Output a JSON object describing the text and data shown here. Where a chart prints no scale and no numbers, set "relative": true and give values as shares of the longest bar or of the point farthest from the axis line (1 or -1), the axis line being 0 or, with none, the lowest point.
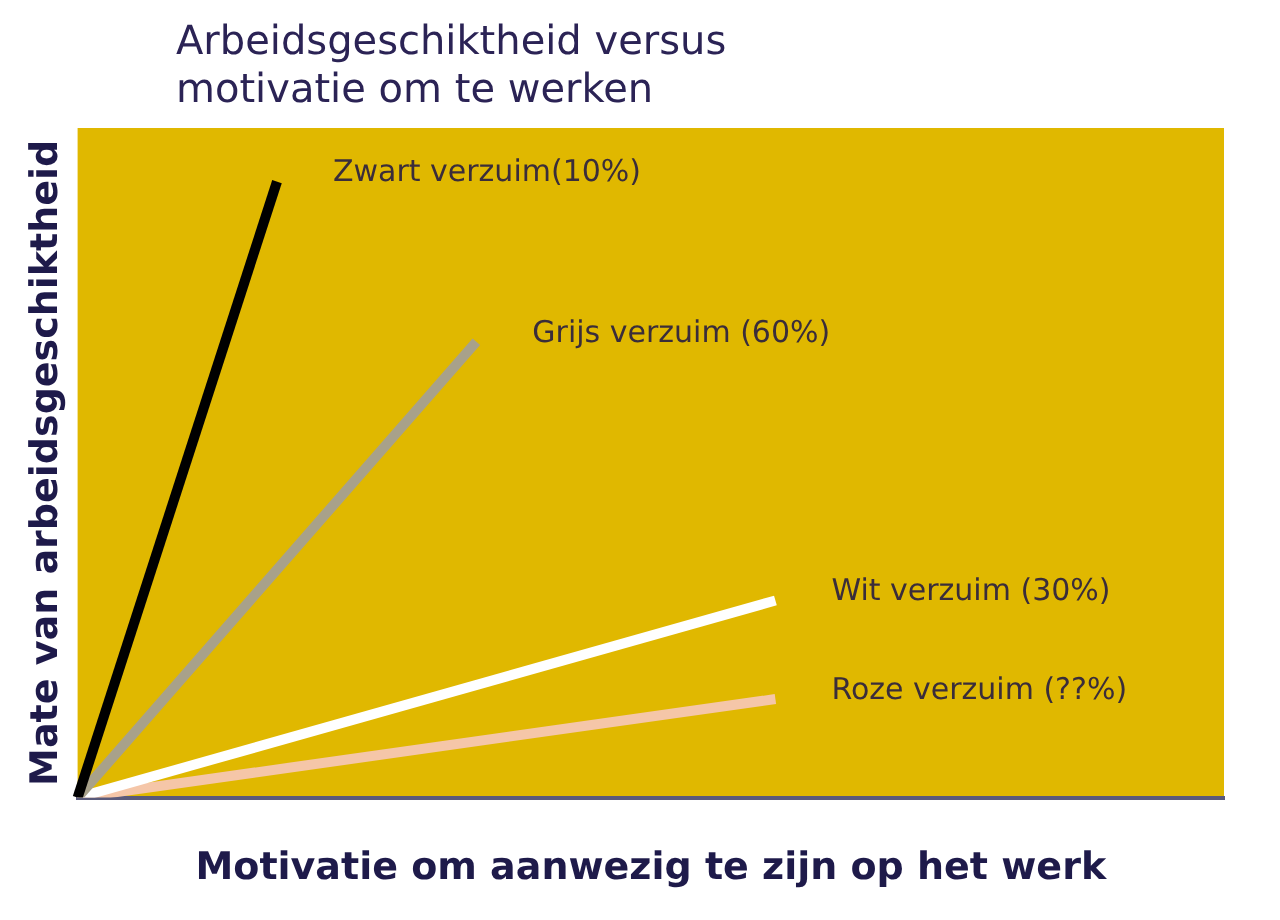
{
  "chart_data": {
    "type": "line",
    "title": "Arbeidsgeschiktheid versus motivatie om te werken",
    "xlabel": "Motivatie om aanwezig te zijn op het werk",
    "ylabel": "Mate van arbeidsgeschiktheid",
    "relative": true,
    "legend": false,
    "marker": "none",
    "line_style": "solid",
    "categories": [
      null,
      null,
      null,
      null,
      null,
      null,
      null,
      null,
      null,
      null,
      null,
      null,
      null,
      null,
      null,
      null,
      null,
      null,
      null,
      null,
      null,
      null,
      null,
      null
    ],
    "series": [
      {
        "name": "Zwart verzuim(10%)",
        "color": "#000000",
        "values": [
          0,
          null,
          null,
          null,
          1,
          null,
          null,
          null,
          null,
          null,
          null,
          null,
          null,
          null,
          null,
          null,
          null,
          null,
          null,
          null,
          null,
          null,
          null,
          null
        ]
      },
      {
        "name": "Grijs verzuim (60%)",
        "color": "#a8a18a",
        "values": [
          0,
          null,
          null,
          null,
          null,
          null,
          null,
          null,
          0.74,
          null,
          null,
          null,
          null,
          null,
          null,
          null,
          null,
          null,
          null,
          null,
          null,
          null,
          null,
          null
        ]
      },
      {
        "name": "Wit verzuim (30%)",
        "color": "#ffffff",
        "values": [
          0,
          null,
          null,
          null,
          null,
          null,
          null,
          null,
          null,
          null,
          null,
          null,
          null,
          null,
          0.32,
          null,
          null,
          null,
          null,
          null,
          null,
          null,
          null,
          null
        ]
      },
      {
        "name": "Roze verzuim (??%)",
        "color": "#f5c6a8",
        "values": [
          0,
          null,
          null,
          null,
          null,
          null,
          null,
          null,
          null,
          null,
          null,
          null,
          null,
          null,
          0.16,
          null,
          null,
          null,
          null,
          null,
          null,
          null,
          null,
          null
        ]
      }
    ]
  }
}
